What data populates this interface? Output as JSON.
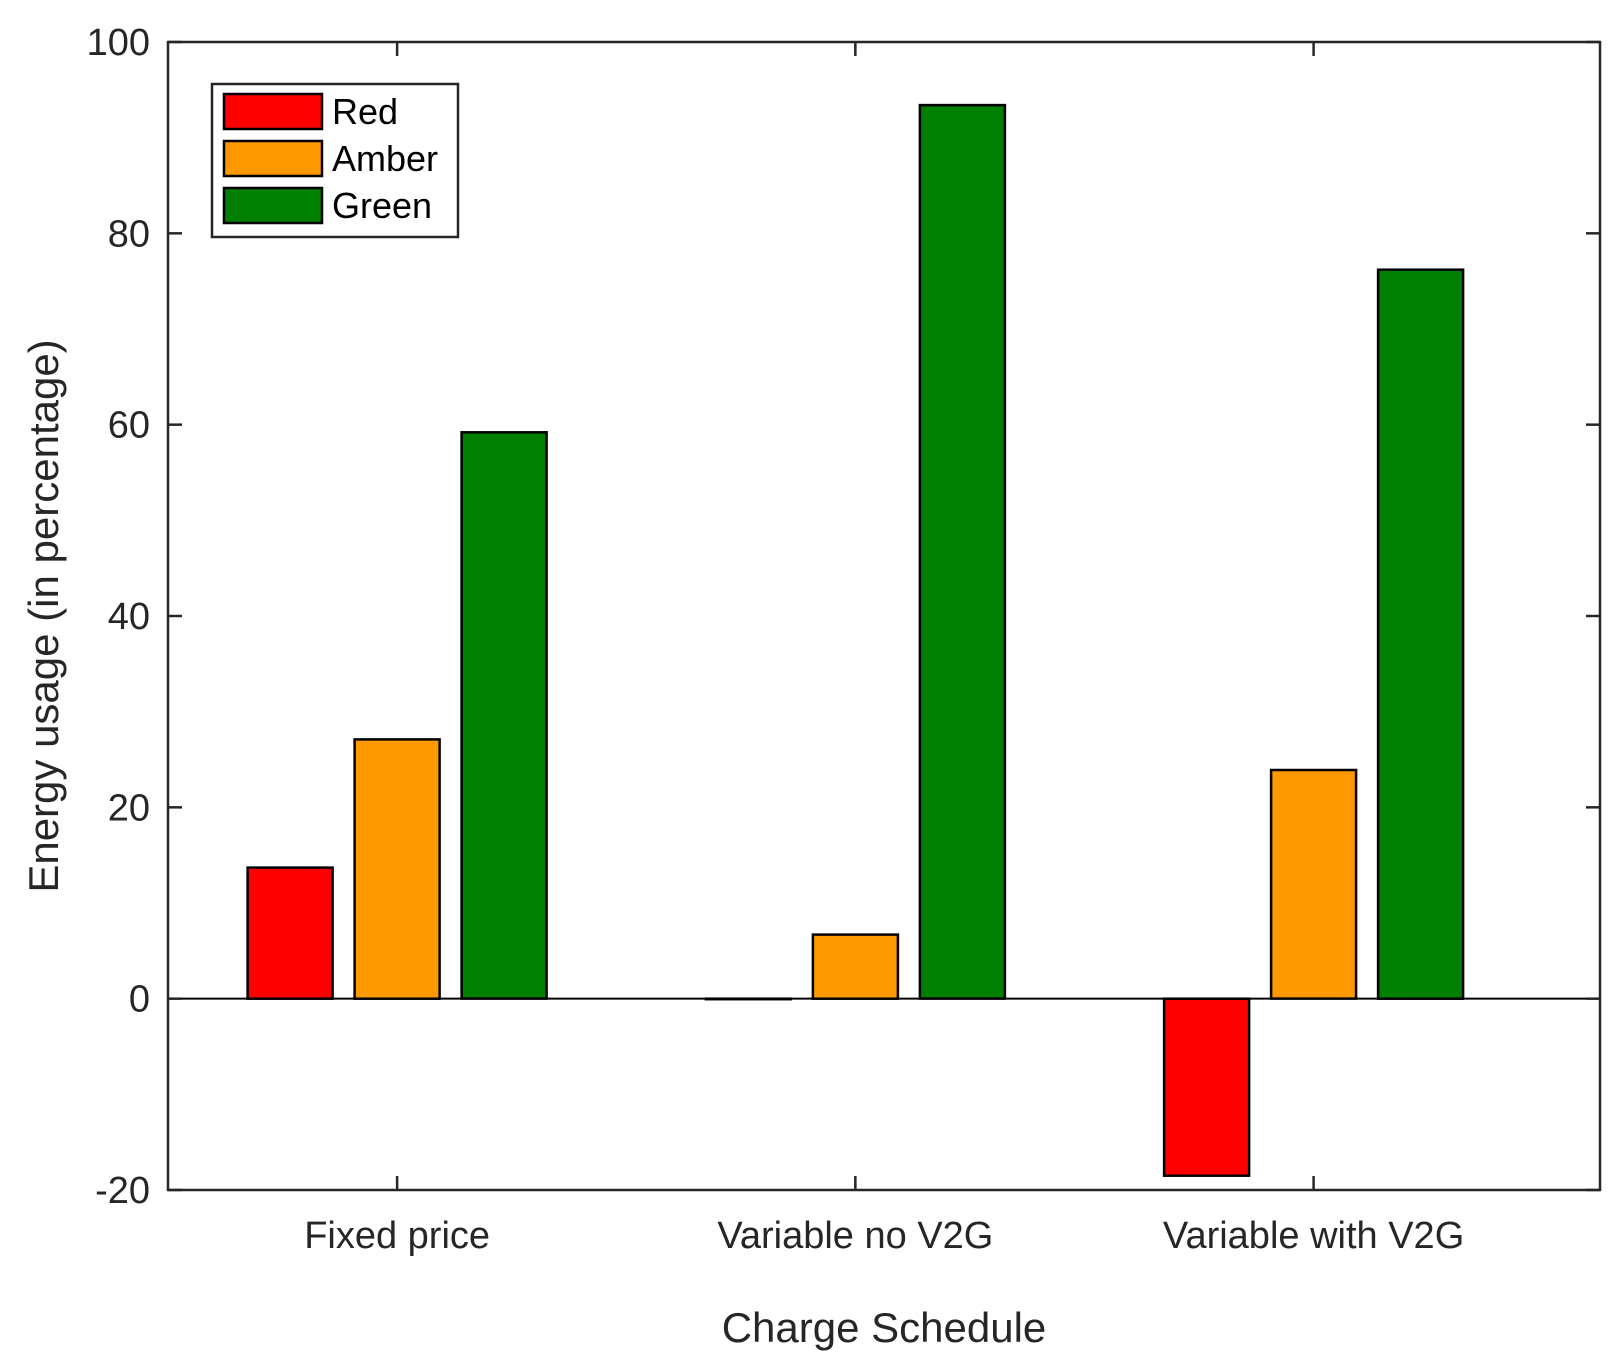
{
  "chart_data": {
    "type": "bar",
    "title": "",
    "xlabel": "Charge Schedule",
    "ylabel": "Energy usage (in percentage)",
    "categories": [
      "Fixed price",
      "Variable no V2G",
      "Variable with V2G"
    ],
    "ylim": [
      -20,
      100
    ],
    "yticks": [
      -20,
      0,
      20,
      40,
      60,
      80,
      100
    ],
    "ytick_labels": [
      "-20",
      "0",
      "20",
      "40",
      "60",
      "80",
      "100"
    ],
    "legend_position": "top-left",
    "grid": false,
    "series": [
      {
        "name": "Red",
        "color": "#ff0000",
        "values": [
          13.7,
          0,
          -18.5
        ]
      },
      {
        "name": "Amber",
        "color": "#ff9900",
        "values": [
          27.1,
          6.7,
          23.9
        ]
      },
      {
        "name": "Green",
        "color": "#007f00",
        "values": [
          59.2,
          93.4,
          76.2
        ]
      }
    ]
  }
}
